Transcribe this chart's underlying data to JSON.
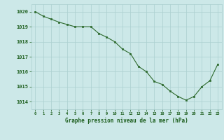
{
  "x": [
    0,
    1,
    2,
    3,
    4,
    5,
    6,
    7,
    8,
    9,
    10,
    11,
    12,
    13,
    14,
    15,
    16,
    17,
    18,
    19,
    20,
    21,
    22,
    23
  ],
  "y": [
    1020.0,
    1019.7,
    1019.5,
    1019.3,
    1019.15,
    1019.0,
    1019.0,
    1019.0,
    1018.55,
    1018.3,
    1018.0,
    1017.5,
    1017.2,
    1016.35,
    1016.0,
    1015.35,
    1015.15,
    1014.7,
    1014.35,
    1014.1,
    1014.35,
    1015.0,
    1015.4,
    1016.5
  ],
  "line_color": "#2d6a2d",
  "marker_color": "#2d6a2d",
  "bg_color": "#cce8e8",
  "grid_color": "#aacfcf",
  "axis_label_color": "#1a5c1a",
  "ylabel_ticks": [
    1014,
    1015,
    1016,
    1017,
    1018,
    1019,
    1020
  ],
  "xlabel_ticks": [
    0,
    1,
    2,
    3,
    4,
    5,
    6,
    7,
    8,
    9,
    10,
    11,
    12,
    13,
    14,
    15,
    16,
    17,
    18,
    19,
    20,
    21,
    22,
    23
  ],
  "xlabel": "Graphe pression niveau de la mer (hPa)",
  "ylim": [
    1013.5,
    1020.5
  ],
  "xlim": [
    -0.5,
    23.5
  ]
}
